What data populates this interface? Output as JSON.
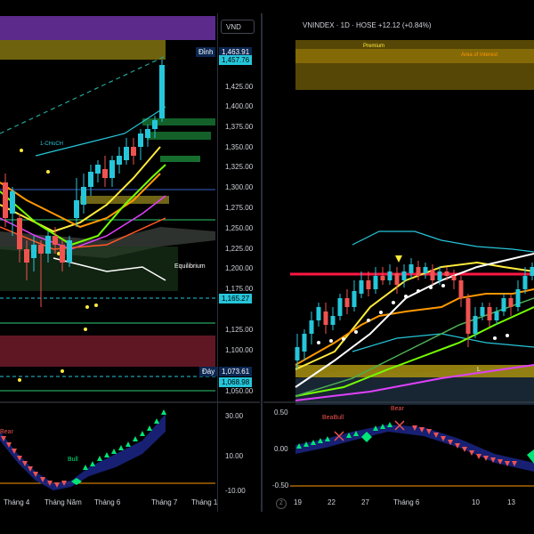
{
  "left_chart": {
    "currency": "VND",
    "price_axis": [
      "1,425.00",
      "1,400.00",
      "1,375.00",
      "1,350.00",
      "1,325.00",
      "1,300.00",
      "1,275.00",
      "1,250.00",
      "1,225.00",
      "1,200.00",
      "1,175.00",
      "1,125.00",
      "1,100.00",
      "1,050.00"
    ],
    "tags": {
      "peak_label": "Đỉnh",
      "peak_value": "1,463.91",
      "last_value": "1,457.76",
      "mid_value": "1,165.27",
      "trough_label": "Đáy",
      "trough_value": "1,073.61",
      "low_value": "1,068.98"
    },
    "annotations": {
      "choch": "1-CHoCH",
      "equilibrium": "Equilibrium"
    },
    "indicator": {
      "label_bear": "Bear",
      "label_bull": "Bull",
      "axis": [
        "30.00",
        "10.00",
        "-10.00"
      ]
    },
    "time_axis": [
      "Tháng 4",
      "Tháng Năm",
      "Tháng 6",
      "Tháng 7",
      "Tháng 1"
    ]
  },
  "right_chart": {
    "legend": "VNINDEX · 1D · HOSE  +12.12 (+0.84%)",
    "annotations": {
      "premium": "Premium",
      "area_of_interest": "Area of Interest",
      "level_l": "L"
    },
    "indicator": {
      "label_beabull": "BeaBull",
      "label_bear": "Bear",
      "axis": [
        "0.50",
        "0.00",
        "-0.50"
      ]
    },
    "time_axis": [
      "19",
      "22",
      "27",
      "Tháng 6",
      "10",
      "13"
    ],
    "logo": "Z"
  },
  "colors": {
    "up": "#26c6da",
    "down": "#ef5350",
    "bg": "#000000",
    "grid": "#2a2e39"
  }
}
